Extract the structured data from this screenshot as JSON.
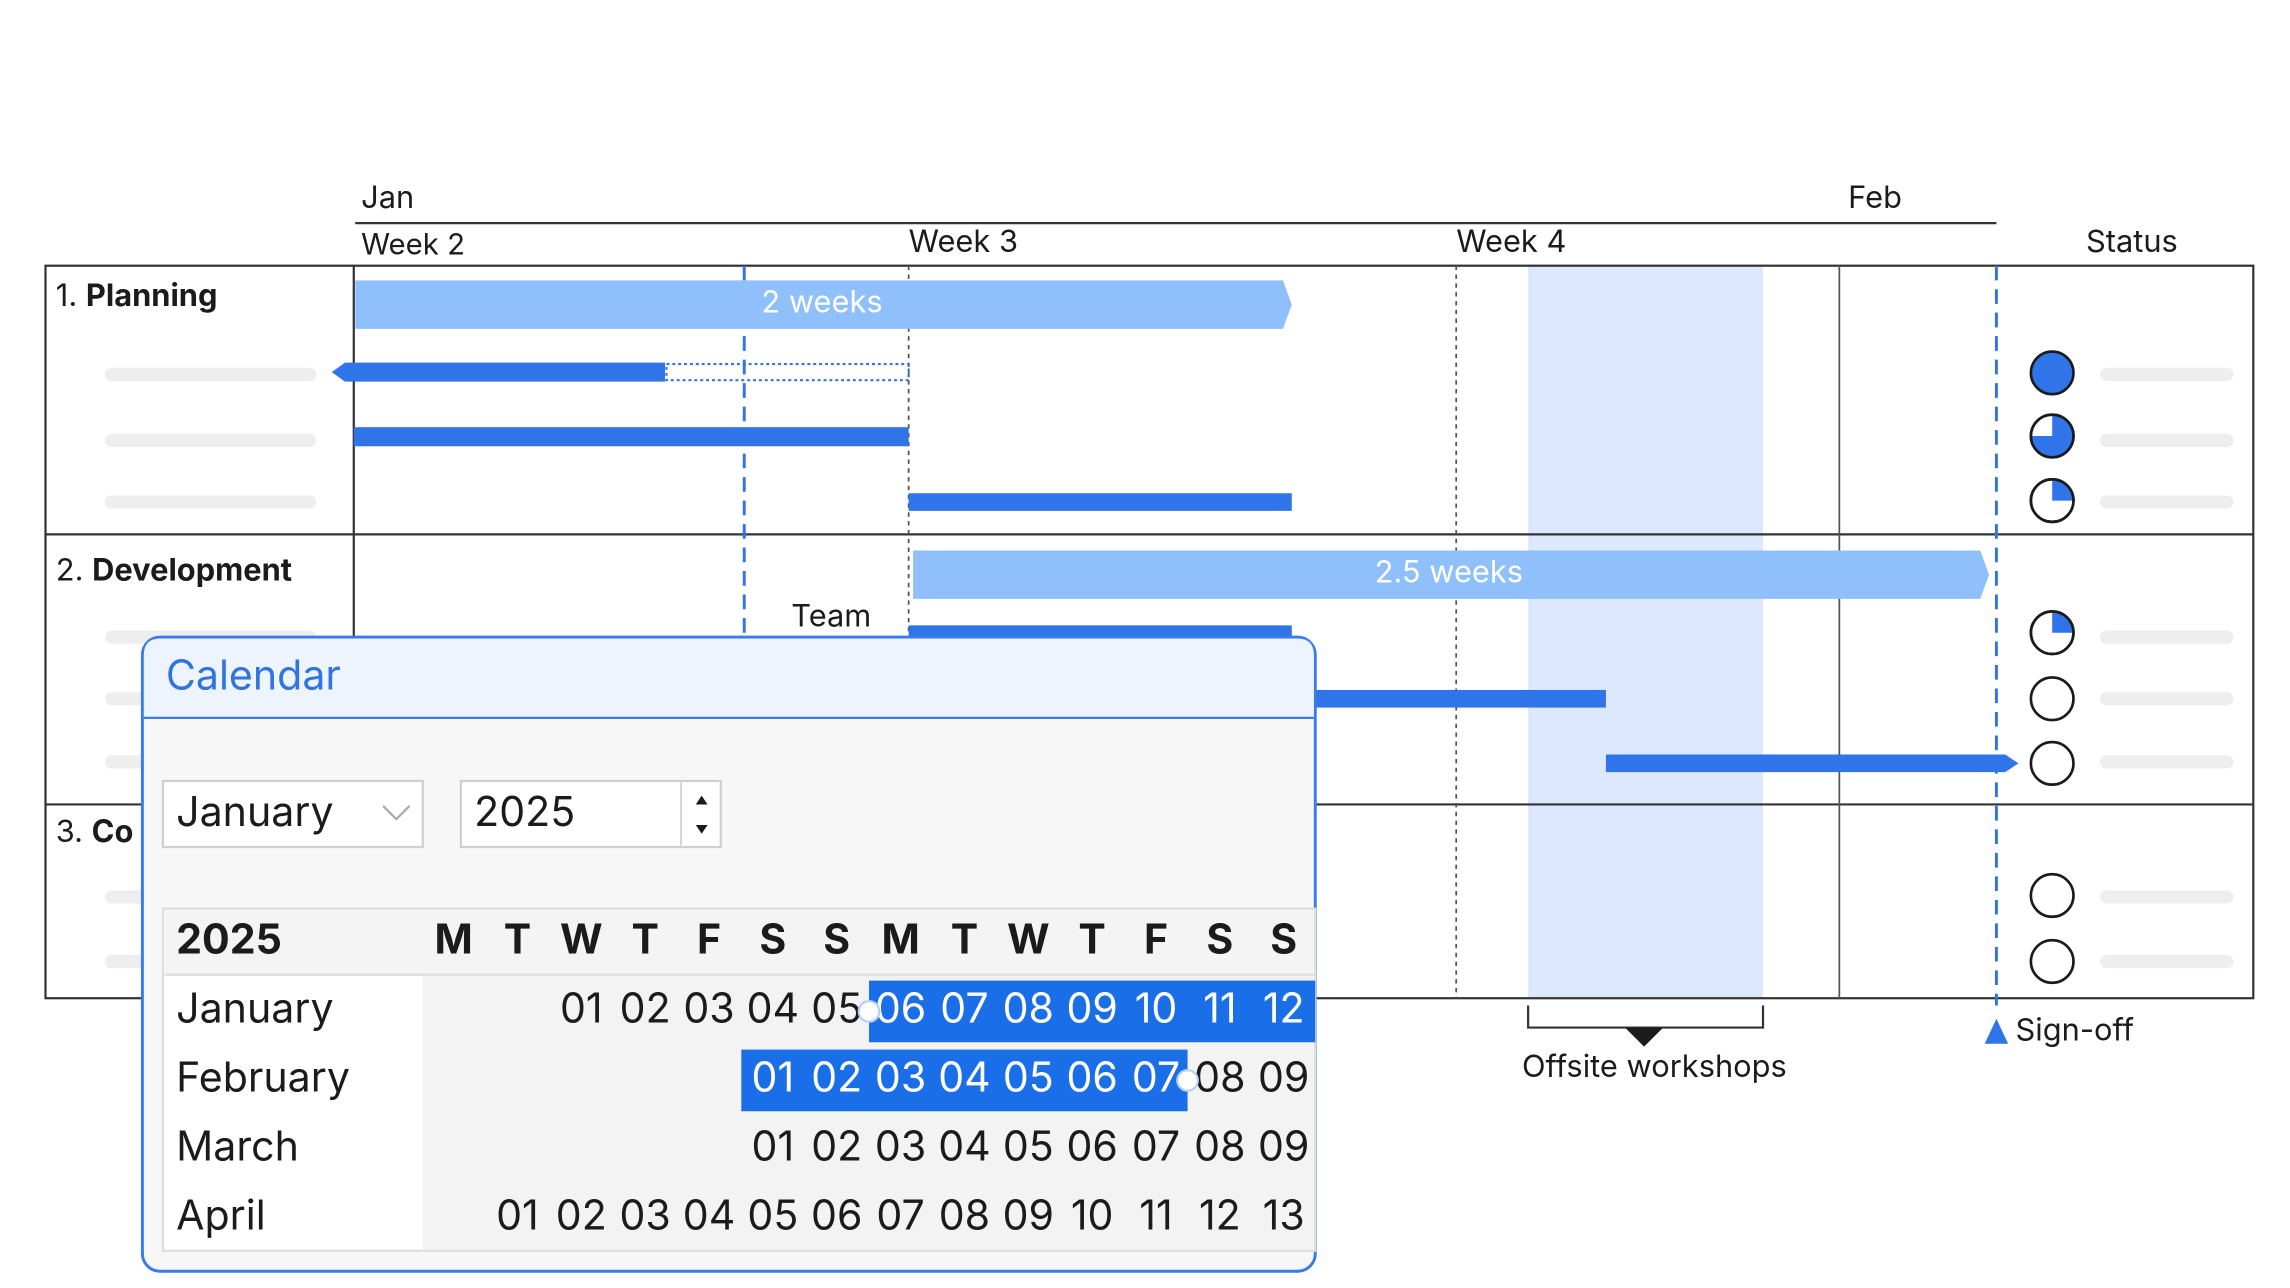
{
  "timeline": {
    "months": [
      "Jan",
      "Feb"
    ],
    "weeks": [
      "Week 2",
      "Week 3",
      "Week 4"
    ],
    "status_header": "Status"
  },
  "sections": [
    {
      "number": "1.",
      "name": "Planning"
    },
    {
      "number": "2.",
      "name": "Development"
    },
    {
      "number": "3.",
      "name": "Co"
    }
  ],
  "bar_labels": {
    "planning_duration": "2 weeks",
    "development_duration": "2.5 weeks",
    "team": "Team"
  },
  "annotations": {
    "offsite": "Offsite workshops",
    "signoff": "Sign-off"
  },
  "calendar": {
    "title": "Calendar",
    "month_select": "January",
    "year_input": "2025",
    "grid_year": "2025",
    "weekdays": [
      "M",
      "T",
      "W",
      "T",
      "F",
      "S",
      "S",
      "M",
      "T",
      "W",
      "T",
      "F",
      "S",
      "S"
    ],
    "rows": [
      {
        "month": "January",
        "days": [
          "01",
          "02",
          "03",
          "04",
          "05",
          "06",
          "07",
          "08",
          "09",
          "10",
          "11",
          "12"
        ]
      },
      {
        "month": "February",
        "days": [
          "01",
          "02",
          "03",
          "04",
          "05",
          "06",
          "07",
          "08",
          "09"
        ]
      },
      {
        "month": "March",
        "days": [
          "01",
          "02",
          "03",
          "04",
          "05",
          "06",
          "07",
          "08",
          "09"
        ]
      },
      {
        "month": "April",
        "days": [
          "01",
          "02",
          "03",
          "04",
          "05",
          "06",
          "07",
          "08",
          "09",
          "10",
          "11",
          "12",
          "13"
        ]
      }
    ]
  }
}
